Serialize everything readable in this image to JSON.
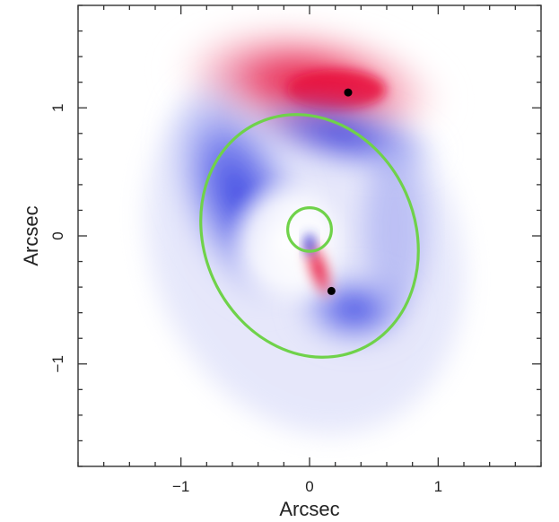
{
  "chart_data": {
    "type": "heatmap",
    "title": "",
    "xlabel": "Arcsec",
    "ylabel": "Arcsec",
    "xlim": [
      -1.8,
      1.8
    ],
    "ylim": [
      -1.8,
      1.8
    ],
    "xticks": [
      -1,
      0,
      1
    ],
    "yticks": [
      -1,
      0,
      1
    ],
    "xtick_labels": [
      "−1",
      "0",
      "1"
    ],
    "ytick_labels": [
      "−1",
      "0",
      "1"
    ],
    "grid": false,
    "colors": {
      "positive": "#e8103a",
      "negative": "#2a36e0",
      "curve": "#6fd24a",
      "point": "#000000"
    },
    "curves": [
      {
        "name": "caustic-outer",
        "type": "ellipse",
        "center": [
          0.0,
          0.0
        ],
        "semi_axes": [
          0.82,
          0.97
        ],
        "angle_deg": -24
      },
      {
        "name": "caustic-inner",
        "type": "ellipse",
        "center": [
          0.0,
          0.05
        ],
        "semi_axes": [
          0.17,
          0.17
        ],
        "angle_deg": 0
      }
    ],
    "points": [
      {
        "name": "image-top",
        "x": 0.3,
        "y": 1.12
      },
      {
        "name": "image-bottom",
        "x": 0.17,
        "y": -0.43
      }
    ]
  }
}
